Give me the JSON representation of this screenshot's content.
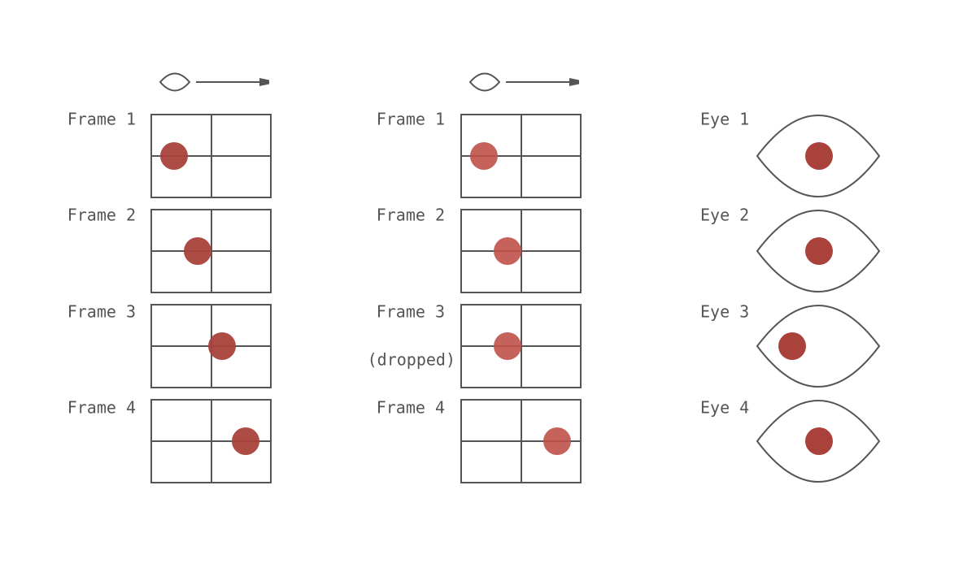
{
  "columns": [
    {
      "frames": [
        {
          "label": "Frame 1"
        },
        {
          "label": "Frame 2"
        },
        {
          "label": "Frame 3"
        },
        {
          "label": "Frame 4"
        }
      ]
    },
    {
      "frames": [
        {
          "label": "Frame 1"
        },
        {
          "label": "Frame 2"
        },
        {
          "label": "Frame 3",
          "note": "(dropped)"
        },
        {
          "label": "Frame 4"
        }
      ]
    }
  ],
  "eyes": [
    {
      "label": "Eye 1"
    },
    {
      "label": "Eye 2"
    },
    {
      "label": "Eye 3"
    },
    {
      "label": "Eye 4"
    }
  ]
}
